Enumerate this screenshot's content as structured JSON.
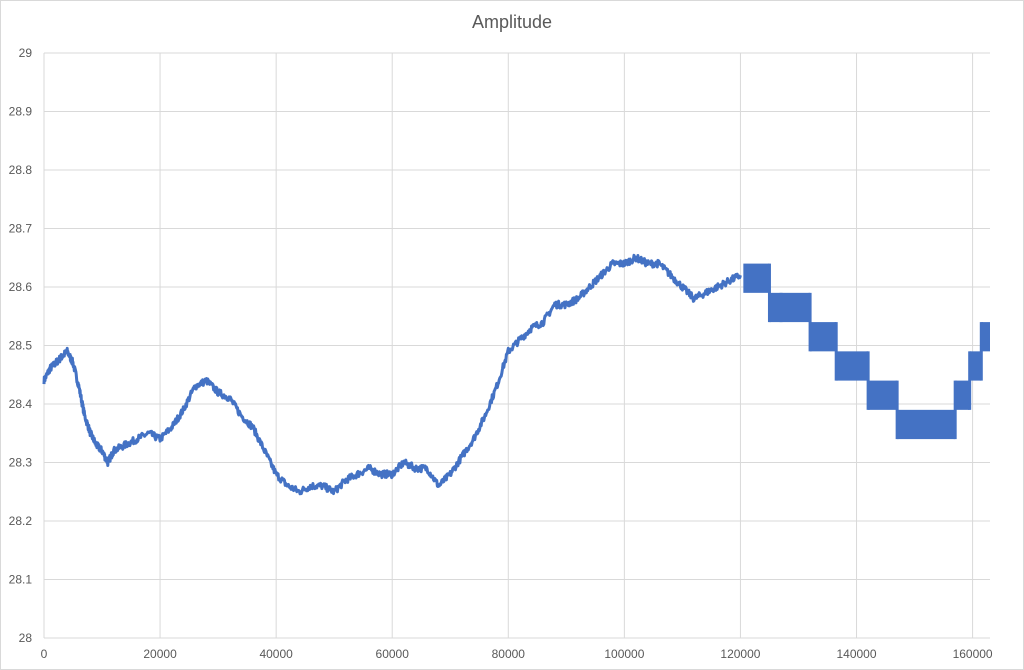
{
  "chart_data": {
    "type": "line",
    "title": "Amplitude",
    "xlabel": "",
    "ylabel": "",
    "xlim": [
      0,
      163000
    ],
    "ylim": [
      28,
      29
    ],
    "x_ticks": [
      0,
      20000,
      40000,
      60000,
      80000,
      100000,
      120000,
      140000,
      160000
    ],
    "y_ticks": [
      "28",
      "28.1",
      "28.2",
      "28.3",
      "28.4",
      "28.5",
      "28.6",
      "28.7",
      "28.8",
      "28.9",
      "29"
    ],
    "grid": true,
    "legend": "none",
    "color": "#4472C4",
    "series": [
      {
        "x": [
          0,
          1000,
          2000,
          3000,
          4000,
          5000,
          6000,
          7000,
          8000,
          9000,
          10000,
          11000,
          12000,
          14000,
          16000,
          18000,
          20000,
          22000,
          24000,
          26000,
          28000,
          30000,
          32000,
          34000,
          36000,
          38000,
          40000,
          42000,
          44000,
          46000,
          48000,
          50000,
          52000,
          54000,
          56000,
          58000,
          60000,
          62000,
          64000,
          66000,
          68000,
          70000,
          72000,
          74000,
          76000,
          78000,
          80000,
          82000,
          84000,
          86000,
          88000,
          90000,
          92000,
          94000,
          96000,
          98000,
          100000,
          102000,
          104000,
          106000,
          108000,
          110000,
          112000,
          114000,
          116000,
          118000,
          120000
        ],
        "y": [
          28.44,
          28.46,
          28.47,
          28.48,
          28.49,
          28.47,
          28.43,
          28.38,
          28.35,
          28.33,
          28.32,
          28.3,
          28.32,
          28.33,
          28.34,
          28.35,
          28.34,
          28.36,
          28.39,
          28.43,
          28.44,
          28.42,
          28.41,
          28.38,
          28.36,
          28.32,
          28.28,
          28.26,
          28.25,
          28.26,
          28.26,
          28.25,
          28.27,
          28.28,
          28.29,
          28.28,
          28.28,
          28.3,
          28.29,
          28.29,
          28.26,
          28.28,
          28.31,
          28.34,
          28.38,
          28.43,
          28.49,
          28.51,
          28.53,
          28.54,
          28.57,
          28.57,
          28.58,
          28.6,
          28.62,
          28.64,
          28.64,
          28.65,
          28.64,
          28.64,
          28.62,
          28.6,
          28.58,
          28.59,
          28.6,
          28.61,
          28.62
        ]
      },
      {
        "name": "",
        "x_ranges": [
          [
            120500,
            125000
          ],
          [
            125000,
            127000
          ],
          [
            127000,
            132000
          ],
          [
            132000,
            136500
          ],
          [
            136500,
            142000
          ],
          [
            142000,
            147000
          ],
          [
            147000,
            157000
          ],
          [
            157000,
            159500
          ],
          [
            159500,
            161500
          ],
          [
            161500,
            163000
          ]
        ],
        "y_ranges": [
          [
            28.59,
            28.64
          ],
          [
            28.54,
            28.59
          ],
          [
            28.54,
            28.59
          ],
          [
            28.49,
            28.54
          ],
          [
            28.44,
            28.49
          ],
          [
            28.39,
            28.44
          ],
          [
            28.34,
            28.39
          ],
          [
            28.39,
            28.44
          ],
          [
            28.44,
            28.49
          ],
          [
            28.49,
            28.54
          ]
        ]
      }
    ]
  }
}
